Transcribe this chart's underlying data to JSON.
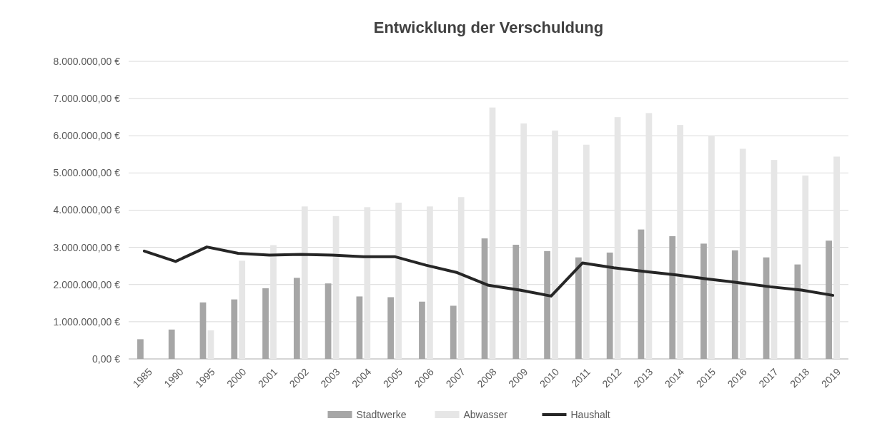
{
  "chart_data": {
    "type": "bar",
    "title": "Entwicklung der Verschuldung",
    "categories": [
      "1985",
      "1990",
      "1995",
      "2000",
      "2001",
      "2002",
      "2003",
      "2004",
      "2005",
      "2006",
      "2007",
      "2008",
      "2009",
      "2010",
      "2011",
      "2012",
      "2013",
      "2014",
      "2015",
      "2016",
      "2017",
      "2018",
      "2019"
    ],
    "series": [
      {
        "name": "Stadtwerke",
        "color": "#a6a6a6",
        "values": [
          530000,
          790000,
          1520000,
          1600000,
          1900000,
          2180000,
          2030000,
          1680000,
          1660000,
          1540000,
          1430000,
          3240000,
          3070000,
          2900000,
          2730000,
          2860000,
          3480000,
          3300000,
          3100000,
          2920000,
          2730000,
          2540000,
          3180000
        ]
      },
      {
        "name": "Abwasser",
        "color": "#e6e6e6",
        "values": [
          null,
          null,
          770000,
          2640000,
          3060000,
          4100000,
          3840000,
          4080000,
          4200000,
          4100000,
          4350000,
          6760000,
          6330000,
          6140000,
          5760000,
          6500000,
          6610000,
          6290000,
          6000000,
          5650000,
          5350000,
          4930000,
          5440000
        ]
      },
      {
        "name": "Haushalt",
        "type": "line",
        "color": "#262626",
        "values": [
          2900000,
          2620000,
          3010000,
          2840000,
          2790000,
          2810000,
          2790000,
          2750000,
          2750000,
          2520000,
          2320000,
          1980000,
          1850000,
          1690000,
          2580000,
          2450000,
          2350000,
          2260000,
          2150000,
          2050000,
          1940000,
          1850000,
          1710000
        ]
      }
    ],
    "ylim": [
      0,
      8000000
    ],
    "yticks": [
      {
        "value": 0,
        "label": "0,00 €"
      },
      {
        "value": 1000000,
        "label": "1.000.000,00 €"
      },
      {
        "value": 2000000,
        "label": "2.000.000,00 €"
      },
      {
        "value": 3000000,
        "label": "3.000.000,00 €"
      },
      {
        "value": 4000000,
        "label": "4.000.000,00 €"
      },
      {
        "value": 5000000,
        "label": "5.000.000,00 €"
      },
      {
        "value": 6000000,
        "label": "6.000.000,00 €"
      },
      {
        "value": 7000000,
        "label": "7.000.000,00 €"
      },
      {
        "value": 8000000,
        "label": "8.000.000,00 €"
      }
    ],
    "grid": "y",
    "legend": "bottom",
    "marker": "none",
    "line_style": "solid"
  }
}
